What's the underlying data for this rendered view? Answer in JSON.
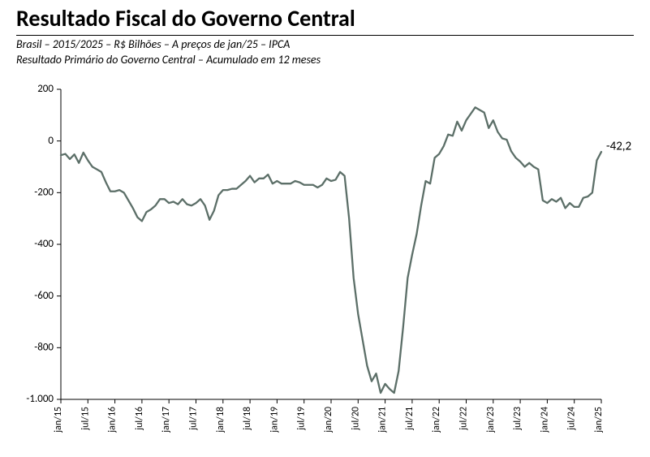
{
  "title": "Resultado Fiscal do Governo Central",
  "title_fontsize": 28,
  "subtitle1": "Brasil – 2015/2025 – R$ Bilhões – A preços de jan/25 – IPCA",
  "subtitle2": "Resultado Primário do Governo Central – Acumulado em 12 meses",
  "subtitle_fontsize": 14,
  "chart": {
    "type": "line",
    "background_color": "#ffffff",
    "line_color": "#5c6f68",
    "line_width": 2.3,
    "axis_color": "#000000",
    "grid": false,
    "ylim": [
      -1000,
      200
    ],
    "ytick_step": 200,
    "yticks": [
      -1000,
      -800,
      -600,
      -400,
      -200,
      0,
      200
    ],
    "ytick_labels": [
      "-1.000",
      "-800",
      "-600",
      "-400",
      "-200",
      "0",
      "200"
    ],
    "ytick_fontsize": 13,
    "xticks_every": 6,
    "xtick_fontsize": 12,
    "xtick_rotation": -90,
    "tick_length": 5,
    "end_label": "-42,2",
    "end_label_fontsize": 15,
    "dates": [
      "jan/15",
      "fev/15",
      "mar/15",
      "abr/15",
      "mai/15",
      "jun/15",
      "jul/15",
      "ago/15",
      "set/15",
      "out/15",
      "nov/15",
      "dez/15",
      "jan/16",
      "fev/16",
      "mar/16",
      "abr/16",
      "mai/16",
      "jun/16",
      "jul/16",
      "ago/16",
      "set/16",
      "out/16",
      "nov/16",
      "dez/16",
      "jan/17",
      "fev/17",
      "mar/17",
      "abr/17",
      "mai/17",
      "jun/17",
      "jul/17",
      "ago/17",
      "set/17",
      "out/17",
      "nov/17",
      "dez/17",
      "jan/18",
      "fev/18",
      "mar/18",
      "abr/18",
      "mai/18",
      "jun/18",
      "jul/18",
      "ago/18",
      "set/18",
      "out/18",
      "nov/18",
      "dez/18",
      "jan/19",
      "fev/19",
      "mar/19",
      "abr/19",
      "mai/19",
      "jun/19",
      "jul/19",
      "ago/19",
      "set/19",
      "out/19",
      "nov/19",
      "dez/19",
      "jan/20",
      "fev/20",
      "mar/20",
      "abr/20",
      "mai/20",
      "jun/20",
      "jul/20",
      "ago/20",
      "set/20",
      "out/20",
      "nov/20",
      "dez/20",
      "jan/21",
      "fev/21",
      "mar/21",
      "abr/21",
      "mai/21",
      "jun/21",
      "jul/21",
      "ago/21",
      "set/21",
      "out/21",
      "nov/21",
      "dez/21",
      "jan/22",
      "fev/22",
      "mar/22",
      "abr/22",
      "mai/22",
      "jun/22",
      "jul/22",
      "ago/22",
      "set/22",
      "out/22",
      "nov/22",
      "dez/22",
      "jan/23",
      "fev/23",
      "mar/23",
      "abr/23",
      "mai/23",
      "jun/23",
      "jul/23",
      "ago/23",
      "set/23",
      "out/23",
      "nov/23",
      "dez/23",
      "jan/24",
      "fev/24",
      "mar/24",
      "abr/24",
      "mai/24",
      "jun/24",
      "jul/24",
      "ago/24",
      "set/24",
      "out/24",
      "nov/24",
      "dez/24",
      "jan/25"
    ],
    "values": [
      -55,
      -50,
      -70,
      -52,
      -85,
      -45,
      -75,
      -100,
      -110,
      -120,
      -160,
      -195,
      -195,
      -190,
      -200,
      -230,
      -260,
      -295,
      -310,
      -275,
      -265,
      -250,
      -225,
      -225,
      -240,
      -235,
      -245,
      -225,
      -245,
      -250,
      -240,
      -225,
      -250,
      -305,
      -270,
      -210,
      -190,
      -190,
      -185,
      -185,
      -170,
      -155,
      -135,
      -160,
      -145,
      -145,
      -130,
      -165,
      -155,
      -165,
      -165,
      -165,
      -155,
      -160,
      -170,
      -170,
      -170,
      -180,
      -170,
      -145,
      -155,
      -150,
      -120,
      -135,
      -300,
      -530,
      -670,
      -770,
      -870,
      -930,
      -900,
      -975,
      -940,
      -960,
      -975,
      -890,
      -720,
      -530,
      -440,
      -360,
      -250,
      -155,
      -165,
      -65,
      -50,
      -20,
      25,
      20,
      75,
      40,
      80,
      105,
      130,
      120,
      110,
      50,
      80,
      35,
      10,
      5,
      -40,
      -65,
      -80,
      -100,
      -85,
      -100,
      -110,
      -230,
      -240,
      -225,
      -235,
      -220,
      -260,
      -240,
      -255,
      -255,
      -220,
      -215,
      -200,
      -75,
      -42.2
    ]
  }
}
